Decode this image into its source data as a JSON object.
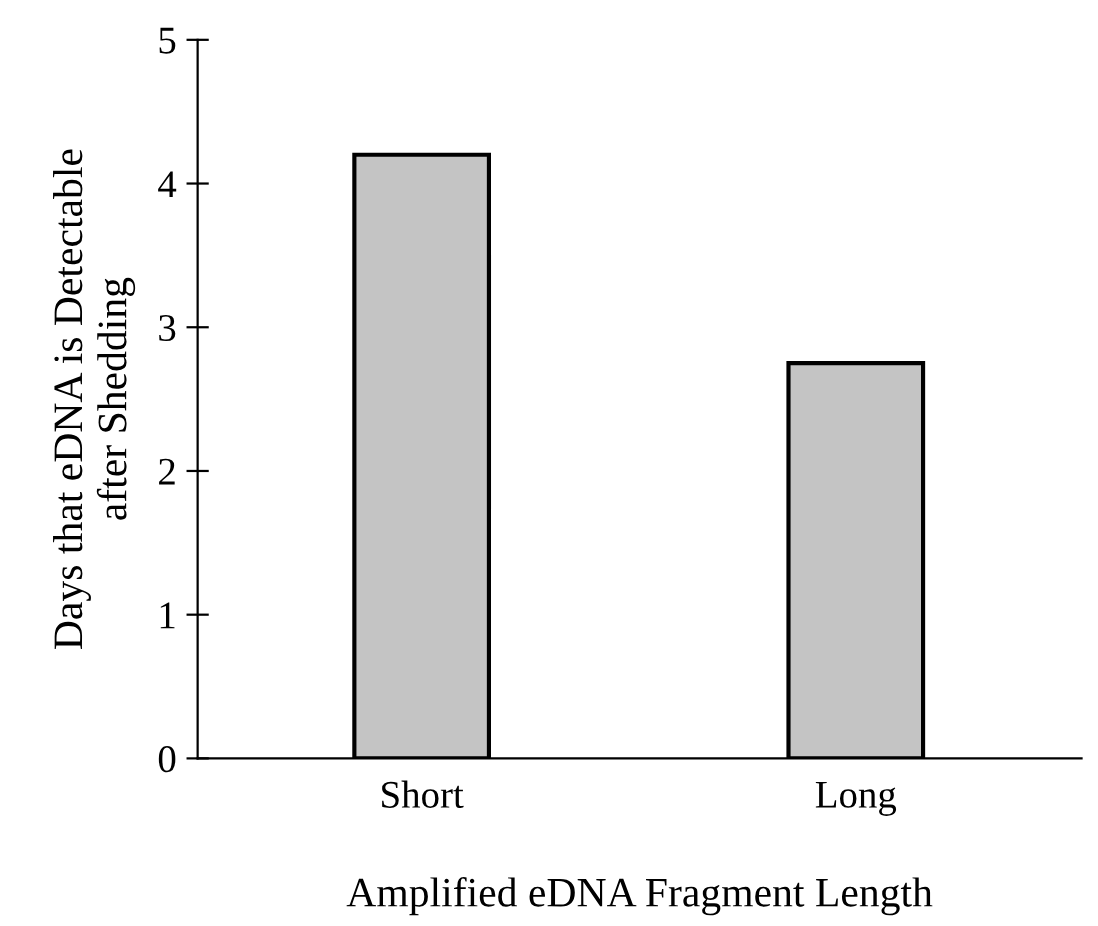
{
  "chart_data": {
    "type": "bar",
    "xlabel": "Amplified eDNA Fragment Length",
    "ylabel": "Days that eDNA is Detectable\nafter Shedding",
    "categories": [
      "Short",
      "Long"
    ],
    "values": [
      4.2,
      2.75
    ],
    "color": "#c4c4c4",
    "ylim": [
      0,
      5
    ],
    "yticks": [
      0,
      1,
      2,
      3,
      4,
      5
    ],
    "grid": false
  }
}
